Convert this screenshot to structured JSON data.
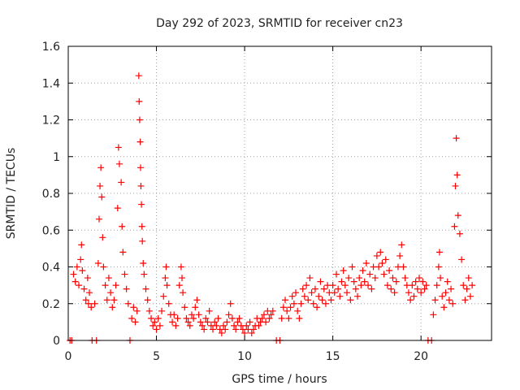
{
  "chart_data": {
    "type": "scatter",
    "title": "Day 292 of 2023, SRMTID for receiver cn23",
    "xlabel": "GPS time / hours",
    "ylabel": "SRMTID / TECUs",
    "xlim": [
      0,
      24
    ],
    "ylim": [
      0,
      1.6
    ],
    "xticks": [
      0,
      5,
      10,
      15,
      20
    ],
    "yticks": [
      0,
      0.2,
      0.4,
      0.6,
      0.8,
      1,
      1.2,
      1.4,
      1.6
    ],
    "xtick_labels": [
      "0",
      "5",
      "10",
      "15",
      "20"
    ],
    "ytick_labels": [
      "0",
      "0.2",
      "0.4",
      "0.6",
      "0.8",
      "1",
      "1.2",
      "1.4",
      "1.6"
    ],
    "grid": true,
    "marker": "plus",
    "series": [
      {
        "name": "SRMTID",
        "color": "#ff0000",
        "points": [
          [
            0.1,
            0.0
          ],
          [
            0.2,
            0.0
          ],
          [
            0.3,
            0.36
          ],
          [
            0.4,
            0.32
          ],
          [
            0.5,
            0.4
          ],
          [
            0.6,
            0.3
          ],
          [
            0.7,
            0.44
          ],
          [
            0.75,
            0.52
          ],
          [
            0.8,
            0.38
          ],
          [
            0.9,
            0.28
          ],
          [
            1.0,
            0.22
          ],
          [
            1.1,
            0.34
          ],
          [
            1.15,
            0.2
          ],
          [
            1.2,
            0.26
          ],
          [
            1.3,
            0.18
          ],
          [
            1.35,
            0.0
          ],
          [
            1.5,
            0.2
          ],
          [
            1.6,
            0.0
          ],
          [
            1.7,
            0.42
          ],
          [
            1.75,
            0.66
          ],
          [
            1.8,
            0.84
          ],
          [
            1.85,
            0.94
          ],
          [
            1.9,
            0.78
          ],
          [
            1.95,
            0.56
          ],
          [
            2.0,
            0.4
          ],
          [
            2.1,
            0.3
          ],
          [
            2.2,
            0.22
          ],
          [
            2.3,
            0.34
          ],
          [
            2.4,
            0.26
          ],
          [
            2.5,
            0.18
          ],
          [
            2.6,
            0.22
          ],
          [
            2.7,
            0.3
          ],
          [
            2.8,
            0.72
          ],
          [
            2.85,
            1.05
          ],
          [
            2.9,
            0.96
          ],
          [
            3.0,
            0.86
          ],
          [
            3.05,
            0.62
          ],
          [
            3.1,
            0.48
          ],
          [
            3.2,
            0.36
          ],
          [
            3.3,
            0.28
          ],
          [
            3.4,
            0.2
          ],
          [
            3.5,
            0.0
          ],
          [
            3.6,
            0.12
          ],
          [
            3.7,
            0.18
          ],
          [
            3.8,
            0.1
          ],
          [
            3.9,
            0.16
          ],
          [
            4.0,
            1.44
          ],
          [
            4.02,
            1.3
          ],
          [
            4.05,
            1.2
          ],
          [
            4.08,
            1.08
          ],
          [
            4.1,
            0.94
          ],
          [
            4.12,
            0.84
          ],
          [
            4.15,
            0.74
          ],
          [
            4.18,
            0.62
          ],
          [
            4.2,
            0.54
          ],
          [
            4.25,
            0.42
          ],
          [
            4.3,
            0.36
          ],
          [
            4.4,
            0.28
          ],
          [
            4.5,
            0.22
          ],
          [
            4.6,
            0.16
          ],
          [
            4.7,
            0.12
          ],
          [
            4.8,
            0.08
          ],
          [
            4.9,
            0.1
          ],
          [
            5.0,
            0.06
          ],
          [
            5.1,
            0.12
          ],
          [
            5.2,
            0.08
          ],
          [
            5.3,
            0.16
          ],
          [
            5.4,
            0.24
          ],
          [
            5.5,
            0.34
          ],
          [
            5.55,
            0.4
          ],
          [
            5.6,
            0.3
          ],
          [
            5.7,
            0.2
          ],
          [
            5.8,
            0.14
          ],
          [
            5.9,
            0.1
          ],
          [
            6.0,
            0.14
          ],
          [
            6.1,
            0.08
          ],
          [
            6.2,
            0.12
          ],
          [
            6.3,
            0.3
          ],
          [
            6.4,
            0.4
          ],
          [
            6.45,
            0.34
          ],
          [
            6.5,
            0.26
          ],
          [
            6.6,
            0.18
          ],
          [
            6.7,
            0.12
          ],
          [
            6.8,
            0.1
          ],
          [
            6.9,
            0.08
          ],
          [
            7.0,
            0.14
          ],
          [
            7.1,
            0.12
          ],
          [
            7.2,
            0.18
          ],
          [
            7.3,
            0.22
          ],
          [
            7.4,
            0.14
          ],
          [
            7.5,
            0.1
          ],
          [
            7.6,
            0.08
          ],
          [
            7.7,
            0.06
          ],
          [
            7.8,
            0.12
          ],
          [
            7.9,
            0.1
          ],
          [
            8.0,
            0.16
          ],
          [
            8.1,
            0.08
          ],
          [
            8.2,
            0.06
          ],
          [
            8.3,
            0.1
          ],
          [
            8.4,
            0.08
          ],
          [
            8.5,
            0.12
          ],
          [
            8.6,
            0.06
          ],
          [
            8.7,
            0.04
          ],
          [
            8.8,
            0.08
          ],
          [
            8.9,
            0.06
          ],
          [
            9.0,
            0.1
          ],
          [
            9.1,
            0.14
          ],
          [
            9.2,
            0.2
          ],
          [
            9.3,
            0.12
          ],
          [
            9.4,
            0.08
          ],
          [
            9.5,
            0.06
          ],
          [
            9.6,
            0.1
          ],
          [
            9.7,
            0.12
          ],
          [
            9.8,
            0.08
          ],
          [
            9.9,
            0.06
          ],
          [
            10.0,
            0.04
          ],
          [
            10.1,
            0.08
          ],
          [
            10.2,
            0.06
          ],
          [
            10.3,
            0.1
          ],
          [
            10.4,
            0.04
          ],
          [
            10.5,
            0.06
          ],
          [
            10.6,
            0.08
          ],
          [
            10.7,
            0.12
          ],
          [
            10.8,
            0.08
          ],
          [
            10.9,
            0.1
          ],
          [
            11.0,
            0.12
          ],
          [
            11.1,
            0.14
          ],
          [
            11.2,
            0.1
          ],
          [
            11.3,
            0.16
          ],
          [
            11.4,
            0.12
          ],
          [
            11.5,
            0.14
          ],
          [
            11.6,
            0.16
          ],
          [
            11.8,
            0.0
          ],
          [
            12.0,
            0.0
          ],
          [
            12.1,
            0.12
          ],
          [
            12.2,
            0.18
          ],
          [
            12.3,
            0.22
          ],
          [
            12.4,
            0.16
          ],
          [
            12.5,
            0.12
          ],
          [
            12.6,
            0.18
          ],
          [
            12.7,
            0.24
          ],
          [
            12.8,
            0.2
          ],
          [
            12.9,
            0.26
          ],
          [
            13.0,
            0.16
          ],
          [
            13.1,
            0.12
          ],
          [
            13.2,
            0.2
          ],
          [
            13.3,
            0.28
          ],
          [
            13.4,
            0.24
          ],
          [
            13.5,
            0.3
          ],
          [
            13.6,
            0.22
          ],
          [
            13.7,
            0.34
          ],
          [
            13.8,
            0.26
          ],
          [
            13.9,
            0.2
          ],
          [
            14.0,
            0.28
          ],
          [
            14.1,
            0.18
          ],
          [
            14.2,
            0.24
          ],
          [
            14.3,
            0.32
          ],
          [
            14.4,
            0.22
          ],
          [
            14.5,
            0.28
          ],
          [
            14.6,
            0.2
          ],
          [
            14.7,
            0.3
          ],
          [
            14.8,
            0.26
          ],
          [
            14.9,
            0.22
          ],
          [
            15.0,
            0.3
          ],
          [
            15.1,
            0.26
          ],
          [
            15.2,
            0.36
          ],
          [
            15.3,
            0.28
          ],
          [
            15.4,
            0.24
          ],
          [
            15.5,
            0.32
          ],
          [
            15.6,
            0.38
          ],
          [
            15.7,
            0.3
          ],
          [
            15.8,
            0.26
          ],
          [
            15.9,
            0.34
          ],
          [
            16.0,
            0.22
          ],
          [
            16.1,
            0.4
          ],
          [
            16.2,
            0.32
          ],
          [
            16.3,
            0.28
          ],
          [
            16.4,
            0.24
          ],
          [
            16.5,
            0.34
          ],
          [
            16.6,
            0.3
          ],
          [
            16.7,
            0.38
          ],
          [
            16.8,
            0.32
          ],
          [
            16.9,
            0.42
          ],
          [
            17.0,
            0.3
          ],
          [
            17.1,
            0.36
          ],
          [
            17.2,
            0.28
          ],
          [
            17.3,
            0.4
          ],
          [
            17.4,
            0.34
          ],
          [
            17.5,
            0.46
          ],
          [
            17.6,
            0.4
          ],
          [
            17.7,
            0.48
          ],
          [
            17.8,
            0.42
          ],
          [
            17.9,
            0.36
          ],
          [
            18.0,
            0.44
          ],
          [
            18.1,
            0.3
          ],
          [
            18.2,
            0.38
          ],
          [
            18.3,
            0.28
          ],
          [
            18.4,
            0.34
          ],
          [
            18.5,
            0.26
          ],
          [
            18.6,
            0.32
          ],
          [
            18.7,
            0.4
          ],
          [
            18.8,
            0.46
          ],
          [
            18.9,
            0.52
          ],
          [
            19.0,
            0.4
          ],
          [
            19.1,
            0.34
          ],
          [
            19.2,
            0.3
          ],
          [
            19.3,
            0.26
          ],
          [
            19.4,
            0.22
          ],
          [
            19.5,
            0.3
          ],
          [
            19.6,
            0.24
          ],
          [
            19.7,
            0.32
          ],
          [
            19.8,
            0.28
          ],
          [
            19.9,
            0.34
          ],
          [
            20.0,
            0.26
          ],
          [
            20.1,
            0.32
          ],
          [
            20.2,
            0.28
          ],
          [
            20.3,
            0.3
          ],
          [
            20.4,
            0.0
          ],
          [
            20.6,
            0.0
          ],
          [
            20.7,
            0.14
          ],
          [
            20.8,
            0.22
          ],
          [
            20.9,
            0.3
          ],
          [
            21.0,
            0.4
          ],
          [
            21.05,
            0.48
          ],
          [
            21.1,
            0.34
          ],
          [
            21.2,
            0.24
          ],
          [
            21.3,
            0.18
          ],
          [
            21.4,
            0.26
          ],
          [
            21.5,
            0.32
          ],
          [
            21.6,
            0.22
          ],
          [
            21.7,
            0.28
          ],
          [
            21.8,
            0.2
          ],
          [
            21.9,
            0.62
          ],
          [
            21.95,
            0.84
          ],
          [
            22.0,
            1.1
          ],
          [
            22.05,
            0.9
          ],
          [
            22.1,
            0.68
          ],
          [
            22.2,
            0.58
          ],
          [
            22.3,
            0.44
          ],
          [
            22.4,
            0.3
          ],
          [
            22.5,
            0.22
          ],
          [
            22.6,
            0.28
          ],
          [
            22.7,
            0.34
          ],
          [
            22.8,
            0.24
          ],
          [
            22.9,
            0.3
          ]
        ]
      }
    ]
  }
}
